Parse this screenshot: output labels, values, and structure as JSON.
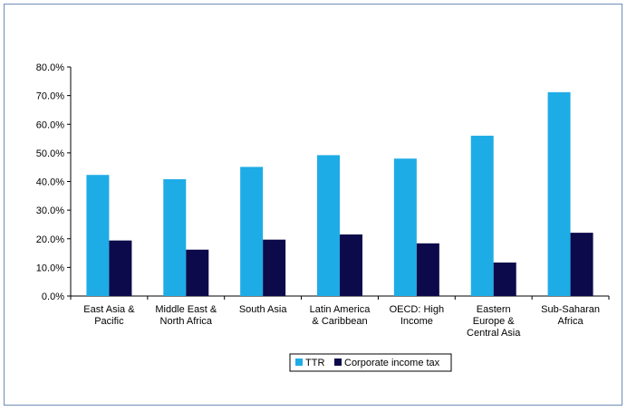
{
  "chart_data": {
    "type": "bar",
    "title": "",
    "xlabel": "",
    "ylabel": "",
    "ylim": [
      0,
      80
    ],
    "ytick_labels": [
      "0.0%",
      "10.0%",
      "20.0%",
      "30.0%",
      "40.0%",
      "50.0%",
      "60.0%",
      "70.0%",
      "80.0%"
    ],
    "categories": [
      [
        "East Asia &",
        "Pacific"
      ],
      [
        "Middle East &",
        "North Africa"
      ],
      [
        "South Asia"
      ],
      [
        "Latin America",
        "& Caribbean"
      ],
      [
        "OECD: High",
        "Income"
      ],
      [
        "Eastern",
        "Europe &",
        "Central Asia"
      ],
      [
        "Sub-Saharan",
        "Africa"
      ]
    ],
    "series": [
      {
        "name": "TTR",
        "color": "#1eace6",
        "values": [
          42.3,
          40.8,
          45.1,
          49.2,
          48.0,
          56.0,
          71.2
        ]
      },
      {
        "name": "Corporate income tax",
        "color": "#0d0a4b",
        "values": [
          19.4,
          16.2,
          19.7,
          21.5,
          18.4,
          11.7,
          22.1
        ]
      }
    ],
    "legend": "bottom",
    "grid": false
  }
}
